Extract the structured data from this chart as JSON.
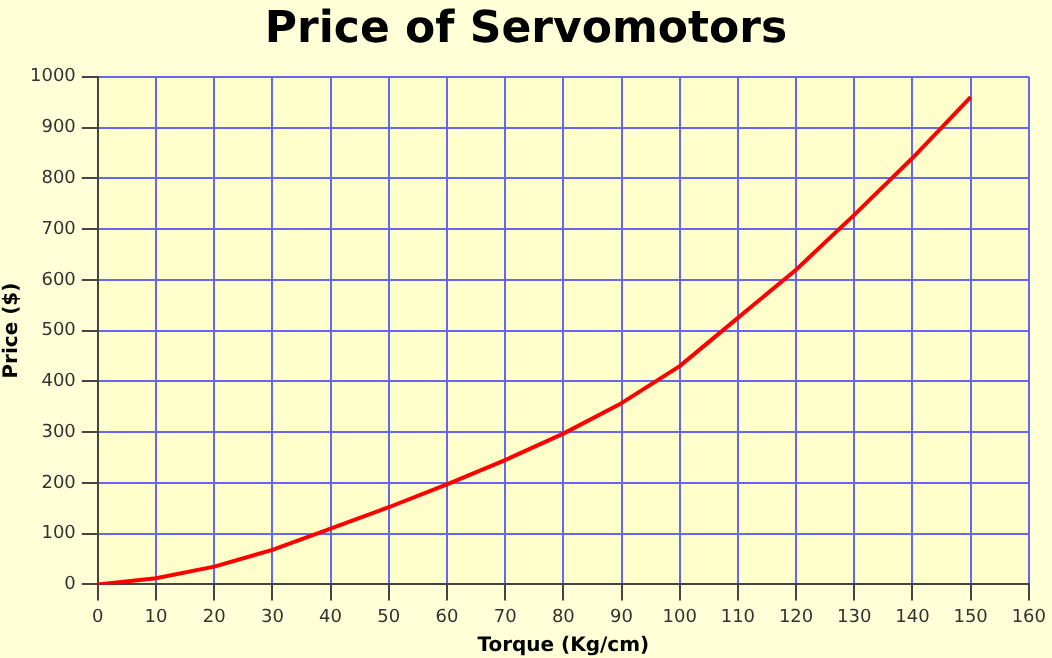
{
  "chart_data": {
    "type": "line",
    "title": "Price of Servomotors",
    "xlabel": "Torque (Kg/cm)",
    "ylabel": "Price ($)",
    "x": [
      0,
      10,
      20,
      30,
      40,
      50,
      60,
      70,
      80,
      90,
      100,
      110,
      120,
      130,
      140,
      150
    ],
    "series": [
      {
        "color": "#ff0000",
        "values": [
          0,
          12,
          35,
          68,
          110,
          152,
          197,
          245,
          297,
          357,
          430,
          525,
          620,
          728,
          840,
          960
        ]
      }
    ],
    "xlim": [
      0,
      160
    ],
    "xticks": [
      0,
      10,
      20,
      30,
      40,
      50,
      60,
      70,
      80,
      90,
      100,
      110,
      120,
      130,
      140,
      150,
      160
    ],
    "ylim": [
      0,
      1000
    ],
    "yticks": [
      0,
      100,
      200,
      300,
      400,
      500,
      600,
      700,
      800,
      900,
      1000
    ],
    "grid": true,
    "legend": false,
    "marker": "none",
    "line_style": "solid"
  }
}
